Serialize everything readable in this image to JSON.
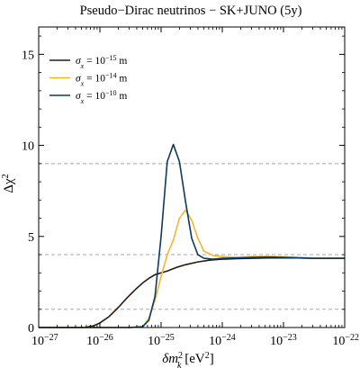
{
  "chart_data": {
    "type": "line",
    "title": "Pseudo−Dirac neutrinos − SK+JUNO (5y)",
    "xlabel_main": "δm",
    "xlabel_sup": "2",
    "xlabel_sub": "k",
    "xlabel_unit": " [eV",
    "xlabel_unit_sup": "2",
    "xlabel_close": "]",
    "ylabel_main": "Δχ",
    "ylabel_sup": "2",
    "xscale": "log",
    "xlim": [
      -27,
      -22
    ],
    "ylim": [
      0,
      16.5
    ],
    "grid": false,
    "x_ticks": [
      {
        "exp": -27,
        "base": "10",
        "sup": "−27"
      },
      {
        "exp": -26,
        "base": "10",
        "sup": "−26"
      },
      {
        "exp": -25,
        "base": "10",
        "sup": "−25"
      },
      {
        "exp": -24,
        "base": "10",
        "sup": "−24"
      },
      {
        "exp": -23,
        "base": "10",
        "sup": "−23"
      },
      {
        "exp": -22,
        "base": "10",
        "sup": "−22"
      }
    ],
    "y_ticks": [
      0,
      5,
      10,
      15
    ],
    "reference_lines": [
      1,
      4,
      9
    ],
    "legend_position": "top-left",
    "series": [
      {
        "name_prefix": "σ",
        "name_sub": "x",
        "name_middle": " = 10",
        "name_sup": "−15",
        "name_suffix": " m",
        "color": "#2b1a0d",
        "x_log10": [
          -27.0,
          -26.5,
          -26.25,
          -26.1,
          -26.0,
          -25.85,
          -25.7,
          -25.55,
          -25.4,
          -25.3,
          -25.2,
          -25.1,
          -25.0,
          -24.9,
          -24.75,
          -24.6,
          -24.4,
          -24.2,
          -24.0,
          -23.75,
          -23.5,
          -23.25,
          -23.0,
          -22.75,
          -22.5,
          -22.25,
          -22.0
        ],
        "y": [
          0.0,
          0.0,
          0.0,
          0.1,
          0.25,
          0.6,
          1.1,
          1.65,
          2.15,
          2.45,
          2.7,
          2.9,
          3.0,
          3.1,
          3.3,
          3.45,
          3.6,
          3.7,
          3.75,
          3.78,
          3.8,
          3.82,
          3.82,
          3.82,
          3.8,
          3.8,
          3.8
        ]
      },
      {
        "name_prefix": "σ",
        "name_sub": "x",
        "name_middle": " = 10",
        "name_sup": "−14",
        "name_suffix": " m",
        "color": "#f2b52e",
        "x_log10": [
          -27.0,
          -26.0,
          -25.5,
          -25.3,
          -25.2,
          -25.1,
          -25.0,
          -24.9,
          -24.8,
          -24.7,
          -24.6,
          -24.5,
          -24.4,
          -24.3,
          -24.15,
          -24.0,
          -23.75,
          -23.5,
          -23.25,
          -23.0,
          -22.75,
          -22.5,
          -22.25,
          -22.0
        ],
        "y": [
          0.0,
          0.0,
          0.0,
          0.05,
          0.5,
          1.5,
          2.8,
          4.0,
          4.8,
          6.0,
          6.45,
          5.9,
          4.9,
          4.2,
          3.95,
          3.9,
          3.85,
          3.9,
          3.9,
          3.88,
          3.85,
          3.82,
          3.82,
          3.82
        ]
      },
      {
        "name_prefix": "σ",
        "name_sub": "x",
        "name_middle": " = 10",
        "name_sup": "−10",
        "name_suffix": " m",
        "color": "#0d3a5c",
        "x_log10": [
          -27.0,
          -26.0,
          -25.5,
          -25.3,
          -25.2,
          -25.1,
          -25.0,
          -24.9,
          -24.8,
          -24.7,
          -24.6,
          -24.5,
          -24.4,
          -24.3,
          -24.15,
          -24.0,
          -23.75,
          -23.5,
          -23.25,
          -23.0,
          -22.75,
          -22.5,
          -22.25,
          -22.0
        ],
        "y": [
          0.0,
          0.0,
          0.0,
          0.05,
          0.4,
          1.7,
          5.0,
          9.1,
          10.05,
          9.1,
          6.9,
          4.9,
          4.0,
          3.8,
          3.75,
          3.8,
          3.82,
          3.85,
          3.87,
          3.85,
          3.82,
          3.8,
          3.8,
          3.8
        ]
      }
    ]
  }
}
